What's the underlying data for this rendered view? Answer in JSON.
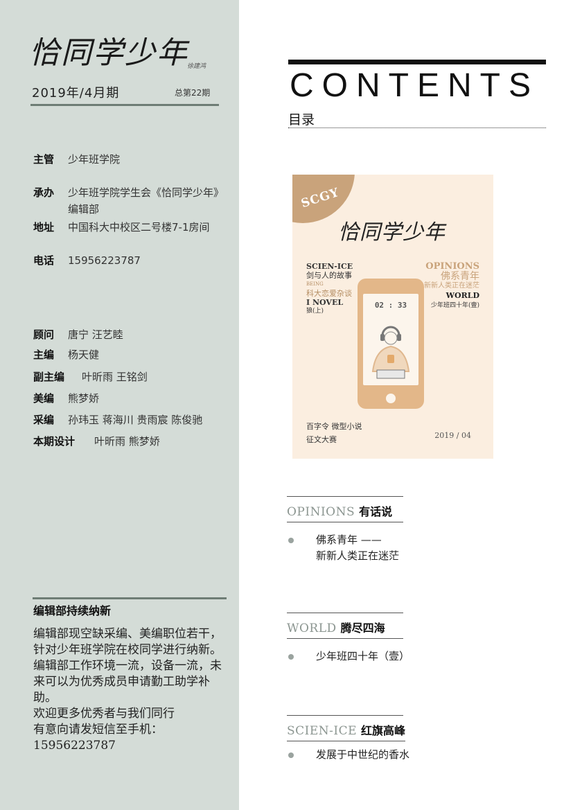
{
  "masthead": {
    "logo": "恰同学少年",
    "signature": "徐建鸿",
    "date": "2019年/4月期",
    "issue_no": "总第22期"
  },
  "info": {
    "sponsor_label": "主管",
    "sponsor": "少年班学院",
    "organizer_label": "承办",
    "organizer": "少年班学院学生会《恰同学少年》编辑部",
    "address_label": "地址",
    "address": "中国科大中校区二号楼7-1房间",
    "phone_label": "电话",
    "phone": "15956223787"
  },
  "staff": {
    "advisor_label": "顾问",
    "advisor": "唐宁 汪艺睦",
    "editor_label": "主编",
    "editor": "杨天健",
    "deputy_label": "副主编",
    "deputy": "叶昕雨 王铭剑",
    "art_label": "美编",
    "art": "熊梦娇",
    "reporter_label": "采编",
    "reporter": "孙玮玉 蒋海川 贵雨宸  陈俊驰",
    "design_label": "本期设计",
    "design": "叶昕雨 熊梦娇"
  },
  "recruit": {
    "title": "编辑部持续纳新",
    "p1": "编辑部现空缺采编、美编职位若干，针对少年班学院在校同学进行纳新。",
    "p2": "编辑部工作环境一流，设备一流，未来可以为优秀成员申请勤工助学补助。",
    "p3": "欢迎更多优秀者与我们同行",
    "p4": "有意向请发短信至手机：",
    "p5": "15956223787"
  },
  "contents": {
    "title": "CONTENTS",
    "subtitle": "目录"
  },
  "cover": {
    "badge": "SCGY",
    "logo": "恰同学少年",
    "left1": "SCIEN-ICE",
    "left2": "剑与人的故事",
    "left3": "BEING",
    "left4": "科大恋爱杂谈",
    "left5": "I NOVEL",
    "left6": "狼(上)",
    "right1": "OPINIONS",
    "right2": "佛系青年",
    "right3": "——新新人类正在迷茫",
    "right4": "WORLD",
    "right5": "少年班四十年(壹)",
    "time": "02 : 33",
    "bottom1": "百字令 微型小说",
    "bottom2": "征文大赛",
    "year": "2019 / 04"
  },
  "sections": [
    {
      "en": "OPINIONS",
      "zh": "有话说",
      "items": [
        "佛系青年 ——",
        "新新人类正在迷茫"
      ]
    },
    {
      "en": "WORLD",
      "zh": "腾尽四海",
      "items": [
        "少年班四十年（壹）"
      ]
    },
    {
      "en": "SCIEN-ICE",
      "zh": "红旗高峰",
      "items": [
        "发展于中世纪的香水"
      ]
    }
  ],
  "colors": {
    "sidebar": "#d4dcd7",
    "accent_gold": "#c9a37b",
    "cover_bg": "#fbeee0"
  }
}
